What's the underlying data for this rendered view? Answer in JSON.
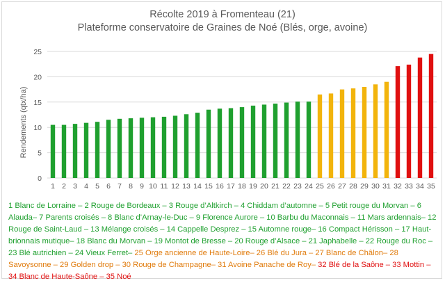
{
  "chart_data": {
    "type": "bar",
    "title": "Récolte 2019 à Fromenteau (21)",
    "subtitle": "Plateforme conservatoire de Graines de Noé (Blés, orge, avoine)",
    "ylabel": "Rendements (qtx/ha)",
    "xlabel": "",
    "ylim": [
      0,
      25
    ],
    "yticks": [
      0,
      5,
      10,
      15,
      20,
      25
    ],
    "grid": true,
    "categories": [
      "1",
      "2",
      "3",
      "4",
      "5",
      "6",
      "7",
      "8",
      "9",
      "10",
      "11",
      "12",
      "13",
      "14",
      "15",
      "16",
      "17",
      "18",
      "19",
      "20",
      "21",
      "22",
      "23",
      "24",
      "25",
      "26",
      "27",
      "28",
      "29",
      "30",
      "31",
      "32",
      "33",
      "34",
      "35"
    ],
    "values": [
      10.5,
      10.5,
      10.7,
      10.9,
      11.1,
      11.5,
      11.7,
      11.8,
      11.9,
      12.0,
      12.1,
      12.3,
      12.6,
      12.9,
      13.5,
      13.7,
      13.8,
      14.0,
      14.3,
      14.5,
      14.7,
      14.9,
      15.1,
      15.1,
      16.5,
      16.7,
      17.5,
      17.7,
      18.0,
      18.5,
      19.0,
      22.1,
      22.4,
      23.8,
      24.5
    ],
    "groups": [
      {
        "color": "#1fa02f",
        "from": 1,
        "to": 24
      },
      {
        "color": "#f2b40c",
        "from": 25,
        "to": 31
      },
      {
        "color": "#e01010",
        "from": 32,
        "to": 35
      }
    ]
  },
  "legend": {
    "segments": [
      {
        "text": "1 Blanc de Lorraine – 2 Rouge de Bordeaux – 3 Rouge d’Altkirch – 4 Chiddam d’automne – 5 Petit rouge du Morvan – 6 Alauda– 7 Parents croisés – 8 Blanc d’Arnay-le-Duc – 9 Florence Aurore – 10 Barbu du Maconnais – 11 Mars ardennais– 12 Rouge de Saint-Laud – 13 Mélange croisés – 14 Cappelle Desprez – 15 Automne rouge– 16 Compact Hérisson – 17 Haut-brionnais mutique– 18 Blanc du Morvan – 19 Montot de Bresse – 20 Rouge d’Alsace – 21 Japhabelle – 22 Rouge du Roc – 23 Blé autrichien – 24 Vieux Ferret–",
        "color": "#1fa02f"
      },
      {
        "text": " 25 Orge ancienne de Haute-Loire– 26 Blé du Jura – 27 Blanc de Châlon– 28 Savoysonne – 29 Golden drop – 30 Rouge de Champagne– 31 Avoine Panache de Roy–",
        "color": "#e07b0c"
      },
      {
        "text": " 32 Blé de la Saône – 33 Mottin – 34 Blanc de Haute-Saône – 35 Noé",
        "color": "#e01010"
      }
    ]
  }
}
